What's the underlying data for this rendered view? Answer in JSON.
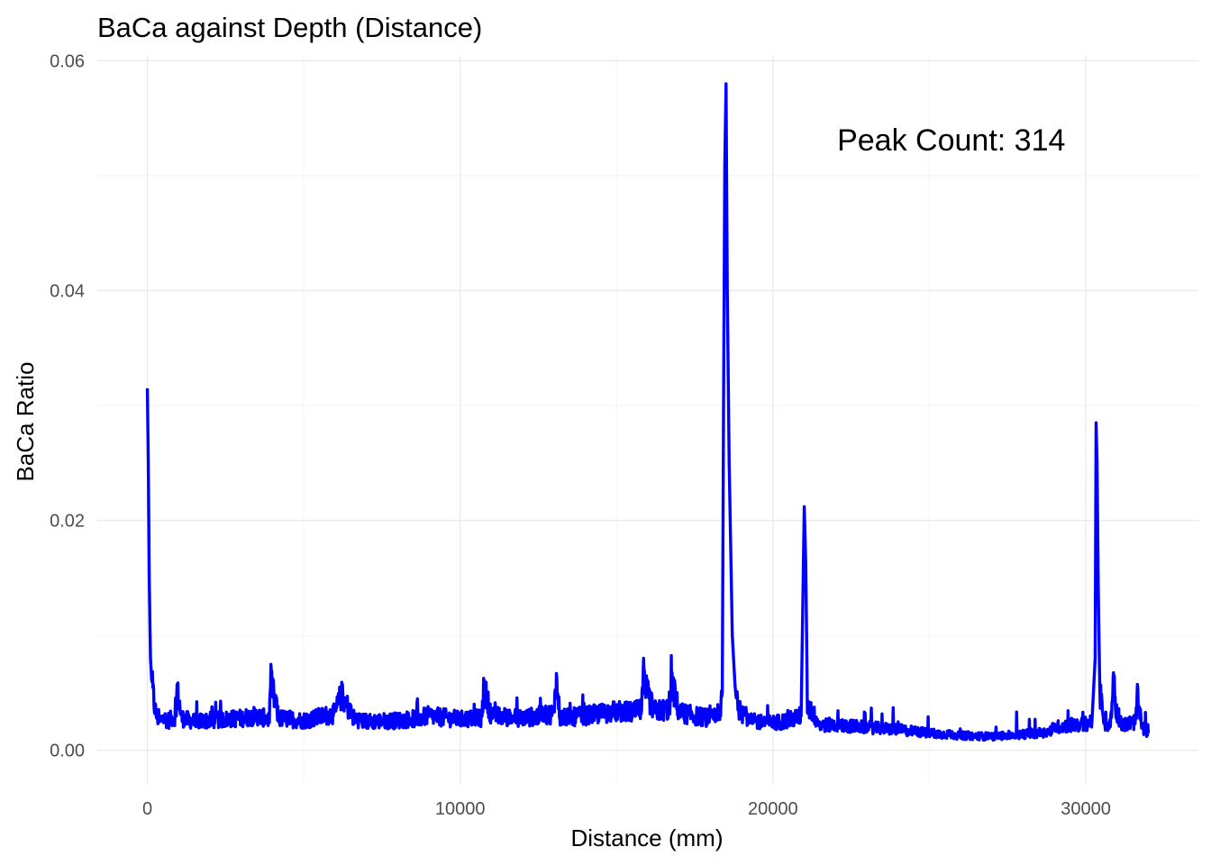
{
  "chart_data": {
    "type": "line",
    "title": "BaCa against Depth (Distance)",
    "xlabel": "Distance (mm)",
    "ylabel": "BaCa Ratio",
    "xlim": [
      -1600,
      33600
    ],
    "ylim": [
      -0.003,
      0.0605
    ],
    "x_ticks": [
      0,
      10000,
      20000,
      30000
    ],
    "x_tick_labels": [
      "0",
      "10000",
      "20000",
      "30000"
    ],
    "y_ticks": [
      0.0,
      0.02,
      0.04,
      0.06
    ],
    "y_tick_labels": [
      "0.00",
      "0.02",
      "0.04",
      "0.06"
    ],
    "grid": true,
    "line_color": "#0000ff",
    "annotation": {
      "text": "Peak Count: 314",
      "x": 25700,
      "y": 0.0522
    },
    "series": [
      {
        "x": [
          0,
          30,
          60,
          100,
          150,
          200,
          250,
          300,
          400,
          500,
          700,
          900,
          950,
          1100,
          1500,
          2000,
          2500,
          3000,
          3500,
          3900,
          3950,
          4200,
          5000,
          6000,
          6200,
          6600,
          7000,
          8000,
          8700,
          9000,
          10000,
          10700,
          10750,
          11000,
          12000,
          12500,
          13000,
          13050,
          13200,
          14000,
          14500,
          15000,
          15500,
          15800,
          15850,
          16200,
          16700,
          16750,
          17000,
          17500,
          18000,
          18300,
          18380,
          18420,
          18460,
          18500,
          18540,
          18600,
          18700,
          18800,
          19000,
          19100,
          19200,
          19500,
          20000,
          20500,
          20900,
          20950,
          21000,
          21050,
          21100,
          21500,
          22000,
          23000,
          24000,
          25000,
          25500,
          26000,
          27000,
          28000,
          28800,
          29000,
          29500,
          30000,
          30200,
          30300,
          30330,
          30360,
          30400,
          30450,
          30600,
          30800,
          30900,
          30950,
          31200,
          31600,
          31650,
          31800,
          32000
        ],
        "y": [
          0.0315,
          0.025,
          0.015,
          0.008,
          0.0055,
          0.0045,
          0.0035,
          0.003,
          0.0025,
          0.0028,
          0.0026,
          0.003,
          0.0052,
          0.0028,
          0.0025,
          0.0026,
          0.0027,
          0.0028,
          0.003,
          0.0027,
          0.0058,
          0.0028,
          0.0026,
          0.0032,
          0.0048,
          0.0028,
          0.0025,
          0.0026,
          0.0028,
          0.003,
          0.0027,
          0.0028,
          0.0055,
          0.003,
          0.0028,
          0.003,
          0.0032,
          0.0065,
          0.0028,
          0.003,
          0.0032,
          0.0034,
          0.0033,
          0.0035,
          0.0058,
          0.0034,
          0.0036,
          0.006,
          0.0033,
          0.003,
          0.0028,
          0.0027,
          0.005,
          0.03,
          0.051,
          0.058,
          0.04,
          0.025,
          0.01,
          0.005,
          0.0028,
          0.0042,
          0.0025,
          0.0025,
          0.0024,
          0.0026,
          0.003,
          0.012,
          0.0212,
          0.016,
          0.004,
          0.0022,
          0.0022,
          0.002,
          0.0018,
          0.0015,
          0.0014,
          0.0013,
          0.0012,
          0.0014,
          0.0016,
          0.002,
          0.0022,
          0.0023,
          0.0026,
          0.008,
          0.0285,
          0.025,
          0.014,
          0.005,
          0.002,
          0.0025,
          0.0066,
          0.0035,
          0.0022,
          0.0025,
          0.0045,
          0.002,
          0.0015
        ]
      }
    ]
  }
}
